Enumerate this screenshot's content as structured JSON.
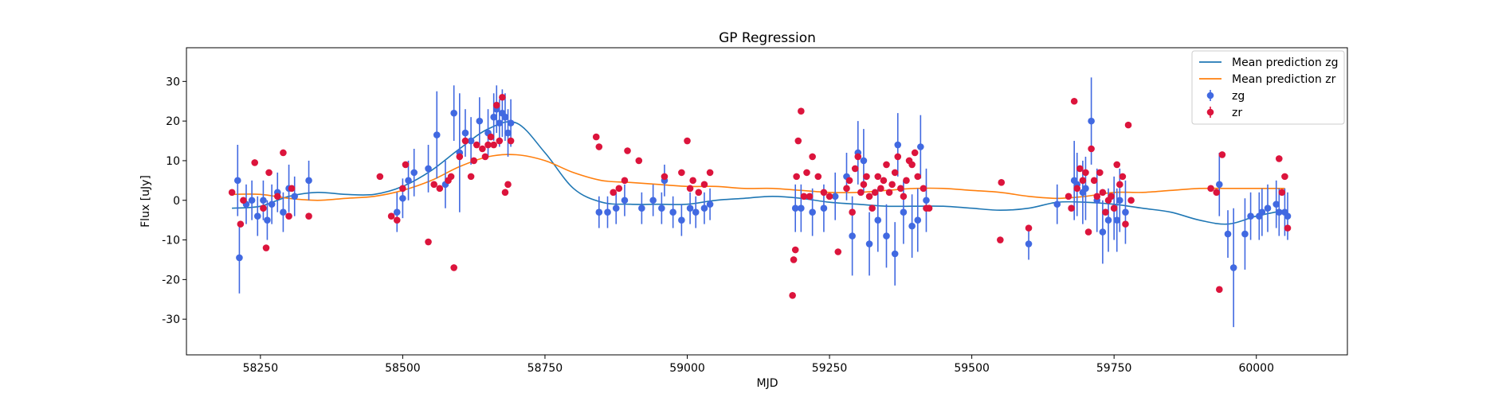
{
  "chart_data": {
    "type": "scatter",
    "title": "GP Regression",
    "xlabel": "MJD",
    "ylabel": "Flux [uJy]",
    "xlim": [
      58120,
      60160
    ],
    "ylim": [
      -39,
      38.5
    ],
    "xticks": [
      58250,
      58500,
      58750,
      59000,
      59250,
      59500,
      59750,
      60000
    ],
    "yticks": [
      -30,
      -20,
      -10,
      0,
      10,
      20,
      30
    ],
    "grid": false,
    "legend_position": "top-right",
    "colors": {
      "mean_zg": "#1f77b4",
      "mean_zr": "#ff7f0e",
      "points_zg": "#4169e1",
      "points_zr": "#dc143c"
    },
    "legend": [
      "Mean prediction zg",
      "Mean prediction zr",
      "zg",
      "zr"
    ],
    "lines": [
      {
        "name": "Mean prediction zg",
        "x": [
          58200,
          58250,
          58300,
          58350,
          58400,
          58450,
          58500,
          58550,
          58600,
          58650,
          58700,
          58750,
          58800,
          58850,
          58900,
          58950,
          59000,
          59050,
          59100,
          59150,
          59200,
          59250,
          59300,
          59350,
          59400,
          59450,
          59500,
          59550,
          59600,
          59650,
          59700,
          59750,
          59800,
          59850,
          59900,
          59950,
          60000,
          60050
        ],
        "y": [
          -2.0,
          -1.5,
          1.0,
          2.0,
          1.5,
          1.5,
          3.5,
          7.5,
          13.0,
          18.0,
          19.5,
          12.0,
          3.0,
          -0.5,
          -1.0,
          -1.0,
          -1.0,
          0.0,
          0.5,
          1.0,
          0.5,
          -0.5,
          -1.0,
          -1.5,
          -1.5,
          -1.5,
          -2.0,
          -2.5,
          -2.0,
          -0.5,
          -0.5,
          -1.0,
          -2.0,
          -3.0,
          -5.0,
          -6.0,
          -4.0,
          -2.5
        ]
      },
      {
        "name": "Mean prediction zr",
        "x": [
          58200,
          58250,
          58300,
          58350,
          58400,
          58450,
          58500,
          58550,
          58600,
          58650,
          58700,
          58750,
          58800,
          58850,
          58900,
          58950,
          59000,
          59050,
          59100,
          59150,
          59200,
          59250,
          59300,
          59350,
          59400,
          59450,
          59500,
          59550,
          59600,
          59650,
          59700,
          59750,
          59800,
          59850,
          59900,
          59950,
          60000,
          60050
        ],
        "y": [
          1.5,
          1.5,
          0.5,
          0.0,
          0.5,
          1.0,
          2.5,
          5.0,
          8.5,
          11.0,
          11.5,
          10.0,
          7.0,
          5.0,
          4.5,
          4.0,
          3.5,
          3.5,
          3.0,
          3.0,
          2.5,
          2.0,
          2.0,
          2.5,
          3.0,
          3.0,
          2.5,
          2.0,
          1.0,
          0.5,
          1.0,
          2.0,
          2.0,
          2.5,
          3.0,
          3.0,
          3.0,
          3.0
        ]
      }
    ],
    "series": [
      {
        "name": "zg",
        "x": [
          58210,
          58213,
          58225,
          58235,
          58245,
          58255,
          58262,
          58270,
          58280,
          58290,
          58300,
          58310,
          58335,
          58490,
          58500,
          58510,
          58520,
          58545,
          58560,
          58575,
          58590,
          58600,
          58610,
          58620,
          58635,
          58650,
          58660,
          58665,
          58670,
          58675,
          58680,
          58685,
          58690,
          58845,
          58860,
          58875,
          58890,
          58920,
          58940,
          58955,
          58960,
          58975,
          58990,
          59005,
          59015,
          59030,
          59040,
          59190,
          59200,
          59220,
          59240,
          59260,
          59280,
          59290,
          59300,
          59310,
          59320,
          59335,
          59350,
          59365,
          59370,
          59380,
          59395,
          59405,
          59410,
          59420,
          59600,
          59650,
          59680,
          59685,
          59695,
          59700,
          59710,
          59720,
          59730,
          59740,
          59750,
          59755,
          59760,
          59770,
          59935,
          59950,
          59960,
          59980,
          59990,
          60005,
          60010,
          60020,
          60035,
          60040,
          60050,
          60055
        ],
        "y": [
          5,
          -14.5,
          -1,
          0,
          -4,
          0,
          -5,
          -1,
          2,
          -3,
          3,
          1,
          5,
          -3,
          0.5,
          5,
          7,
          8,
          16.5,
          4,
          22,
          12,
          17,
          15,
          20,
          17,
          21,
          23,
          19.5,
          22,
          21,
          17,
          19.5,
          -3,
          -3,
          -2,
          0,
          -2,
          0,
          -2,
          5,
          -3,
          -5,
          -2,
          -3,
          -2,
          -1,
          -2,
          -2,
          -3,
          -2,
          1,
          6,
          -9,
          12,
          10,
          -11,
          -5,
          -9,
          -13.5,
          14,
          -3,
          -6.5,
          -5,
          13.5,
          0,
          -11,
          -1,
          5,
          4,
          2,
          3,
          20,
          0,
          -8,
          -5,
          -2,
          -5,
          0,
          -3,
          4,
          -8.5,
          -17,
          -8.5,
          -4,
          -4,
          -3,
          -2,
          -1,
          -3,
          -3,
          -4
        ],
        "yerr": [
          9,
          9,
          5,
          5,
          5,
          5,
          5,
          5,
          5,
          5,
          6,
          5,
          5,
          5,
          5,
          5,
          6,
          6,
          11,
          6,
          7,
          15,
          6,
          6,
          6,
          6,
          6,
          6,
          6,
          6,
          6,
          6,
          6,
          4,
          4,
          4,
          4,
          4,
          4,
          4,
          4,
          4,
          4,
          4,
          4,
          4,
          4,
          6,
          6,
          6,
          6,
          6,
          6,
          10,
          8,
          8,
          8,
          8,
          8,
          8,
          8,
          8,
          8,
          8,
          8,
          8,
          4,
          5,
          10,
          8,
          8,
          8,
          11,
          8,
          8,
          8,
          8,
          8,
          8,
          8,
          8,
          6,
          15,
          9,
          6,
          6,
          6,
          6,
          6,
          6,
          6,
          6
        ]
      },
      {
        "name": "zr",
        "x": [
          58200,
          58215,
          58220,
          58240,
          58255,
          58260,
          58265,
          58280,
          58290,
          58300,
          58305,
          58335,
          58460,
          58480,
          58490,
          58500,
          58505,
          58545,
          58555,
          58565,
          58580,
          58585,
          58590,
          58600,
          58610,
          58620,
          58625,
          58630,
          58640,
          58645,
          58650,
          58655,
          58660,
          58665,
          58670,
          58675,
          58680,
          58685,
          58690,
          58840,
          58845,
          58870,
          58880,
          58890,
          58895,
          58915,
          58960,
          58990,
          59000,
          59005,
          59010,
          59020,
          59030,
          59040,
          59185,
          59187,
          59190,
          59192,
          59195,
          59200,
          59205,
          59210,
          59215,
          59220,
          59230,
          59240,
          59250,
          59265,
          59280,
          59285,
          59290,
          59295,
          59300,
          59305,
          59310,
          59315,
          59320,
          59325,
          59330,
          59335,
          59340,
          59345,
          59350,
          59355,
          59360,
          59365,
          59370,
          59375,
          59380,
          59385,
          59390,
          59395,
          59400,
          59405,
          59415,
          59420,
          59425,
          59550,
          59552,
          59600,
          59670,
          59675,
          59680,
          59685,
          59690,
          59695,
          59700,
          59705,
          59710,
          59715,
          59720,
          59725,
          59730,
          59735,
          59740,
          59745,
          59750,
          59755,
          59760,
          59765,
          59770,
          59775,
          59780,
          59920,
          59930,
          59935,
          59940,
          60040,
          60045,
          60050,
          60055
        ],
        "y": [
          2,
          -6,
          0,
          9.5,
          -2,
          -12,
          7,
          1,
          12,
          -4,
          3,
          -4,
          6,
          -4,
          -5,
          3,
          9,
          -10.5,
          4,
          3,
          5,
          6,
          -17,
          11,
          15,
          6,
          10,
          14,
          13,
          11,
          14,
          16,
          14,
          24,
          15,
          26,
          2,
          4,
          15,
          16,
          13.5,
          2,
          3,
          5,
          12.5,
          10,
          6,
          7,
          15,
          3,
          5,
          2,
          4,
          7,
          -24,
          -15,
          -12.5,
          6,
          15,
          22.5,
          1,
          7,
          1,
          11,
          6,
          2,
          1,
          -13,
          3,
          5,
          -3,
          8,
          11,
          2,
          4,
          6,
          1,
          -2,
          2,
          6,
          3,
          5,
          9,
          2,
          4,
          7,
          11,
          3,
          1,
          5,
          10,
          9,
          12,
          6,
          3,
          -2,
          -2,
          -10,
          4.5,
          -7,
          1,
          -2,
          25,
          3,
          8,
          5,
          7,
          -8,
          13,
          5,
          1,
          7,
          2,
          -3,
          0,
          1,
          -2,
          9,
          4,
          6,
          -6,
          19,
          0,
          3,
          2,
          -22.5,
          11.5,
          10.5,
          2,
          6,
          -7
        ]
      }
    ]
  }
}
